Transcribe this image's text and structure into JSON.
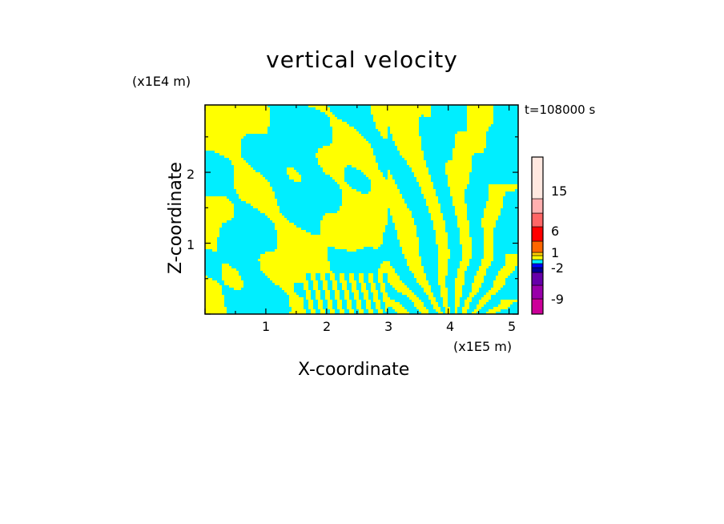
{
  "chart_data": {
    "type": "heatmap",
    "title": "vertical velocity",
    "xlabel": "X-coordinate",
    "ylabel": "Z-coordinate",
    "x_unit": "(x1E5 m)",
    "y_unit": "(x1E4 m)",
    "time_label": "t=108000 s",
    "xlim": [
      0,
      5.15
    ],
    "ylim": [
      0,
      2.95
    ],
    "x_ticks": [
      "1",
      "2",
      "3",
      "4",
      "5"
    ],
    "y_ticks": [
      "1",
      "2"
    ],
    "dominant_colors": [
      "#00eeff",
      "#ffff00"
    ],
    "pattern_description_values": {
      "positive_region_color": "#ffff00",
      "negative_region_color": "#00eeff"
    },
    "colorbar": {
      "labels": [
        "15",
        "6",
        "1",
        "-2",
        "-9"
      ],
      "colors": [
        "#cc0099",
        "#9900aa",
        "#6600aa",
        "#000099",
        "#0000ff",
        "#00eeff",
        "#ffff00",
        "#ffcc00",
        "#ff6600",
        "#ff0000",
        "#ff6666",
        "#ffb0b0",
        "#ffe8e0"
      ]
    }
  }
}
